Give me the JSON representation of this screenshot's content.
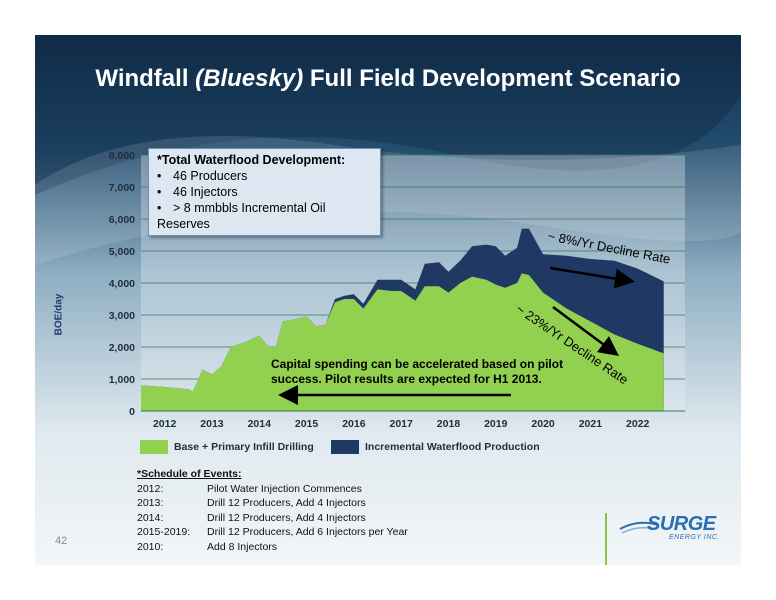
{
  "title": {
    "main": "Windfall ",
    "italic": "(Bluesky)",
    "rest": " Full Field Development Scenario"
  },
  "callout": {
    "heading": "*Total Waterflood Development:",
    "items": [
      "46 Producers",
      "46 Injectors",
      "> 8 mmbbls Incremental Oil Reserves"
    ],
    "bullet": "•"
  },
  "annotations": {
    "decline_8": "~ 8%/Yr Decline Rate",
    "decline_23": "~ 23%/Yr Decline Rate",
    "note": "Capital spending can be accelerated based on pilot success.  Pilot results are expected for H1 2013."
  },
  "schedule": {
    "heading": "*Schedule of Events:",
    "rows": [
      {
        "year": "2012:",
        "event": "Pilot Water Injection Commences"
      },
      {
        "year": "2013:",
        "event": "Drill 12 Producers, Add 4 Injectors"
      },
      {
        "year": "2014:",
        "event": "Drill 12 Producers, Add 4 Injectors"
      },
      {
        "year": "2015-2019:",
        "event": "Drill 12 Producers, Add 6 Injectors per Year"
      },
      {
        "year": "2010:",
        "event": "Add 8 Injectors"
      }
    ]
  },
  "page_number": "42",
  "logo": {
    "word": "SURGE",
    "sub": "ENERGY INC."
  },
  "colors": {
    "base": "#92d050",
    "incremental": "#1f3864",
    "slide_dark": "#16344f",
    "arrow": "#000000"
  },
  "chart_data": {
    "type": "area",
    "ylabel": "BOE/day",
    "ylim": [
      0,
      8000
    ],
    "yticks": [
      0,
      1000,
      2000,
      3000,
      4000,
      5000,
      6000,
      7000,
      8000
    ],
    "ytick_labels": [
      "0",
      "1,000",
      "2,000",
      "3,000",
      "4,000",
      "5,000",
      "6,000",
      "7,000",
      "8,000"
    ],
    "xlim": [
      2011.5,
      2023.0
    ],
    "xtick_values": [
      2012,
      2013,
      2014,
      2015,
      2016,
      2017,
      2018,
      2019,
      2020,
      2021,
      2022
    ],
    "xticks": [
      "2012",
      "2013",
      "2014",
      "2015",
      "2016",
      "2017",
      "2018",
      "2019",
      "2020",
      "2021",
      "2022"
    ],
    "grid": true,
    "stacked": true,
    "legend_position": "bottom",
    "x": [
      2011.5,
      2012.0,
      2012.5,
      2012.6,
      2012.8,
      2013.0,
      2013.2,
      2013.4,
      2013.5,
      2013.7,
      2014.0,
      2014.2,
      2014.35,
      2014.5,
      2014.7,
      2015.0,
      2015.2,
      2015.4,
      2015.6,
      2015.8,
      2016.0,
      2016.2,
      2016.5,
      2016.8,
      2017.0,
      2017.3,
      2017.5,
      2017.8,
      2018.0,
      2018.25,
      2018.5,
      2018.8,
      2019.0,
      2019.2,
      2019.45,
      2019.55,
      2019.7,
      2020.0,
      2020.5,
      2021.0,
      2021.5,
      2022.0,
      2022.55
    ],
    "series": [
      {
        "name": "Base + Primary Infill Drilling",
        "values": [
          800,
          750,
          680,
          620,
          1300,
          1150,
          1400,
          2000,
          2050,
          2150,
          2350,
          2000,
          2000,
          2800,
          2850,
          2950,
          2650,
          2700,
          3400,
          3500,
          3500,
          3200,
          3800,
          3750,
          3750,
          3450,
          3900,
          3900,
          3700,
          4000,
          4200,
          4100,
          3950,
          3850,
          4000,
          4300,
          4250,
          3700,
          3200,
          2800,
          2400,
          2100,
          1800
        ]
      },
      {
        "name": "Incremental Waterflood Production",
        "values": [
          0,
          0,
          0,
          0,
          0,
          0,
          0,
          0,
          0,
          0,
          0,
          0,
          0,
          0,
          0,
          0,
          0,
          0,
          100,
          100,
          150,
          150,
          300,
          350,
          350,
          350,
          700,
          750,
          650,
          700,
          950,
          1100,
          1200,
          1000,
          1100,
          1400,
          1450,
          1200,
          1650,
          1950,
          2300,
          2350,
          2250
        ]
      }
    ]
  }
}
